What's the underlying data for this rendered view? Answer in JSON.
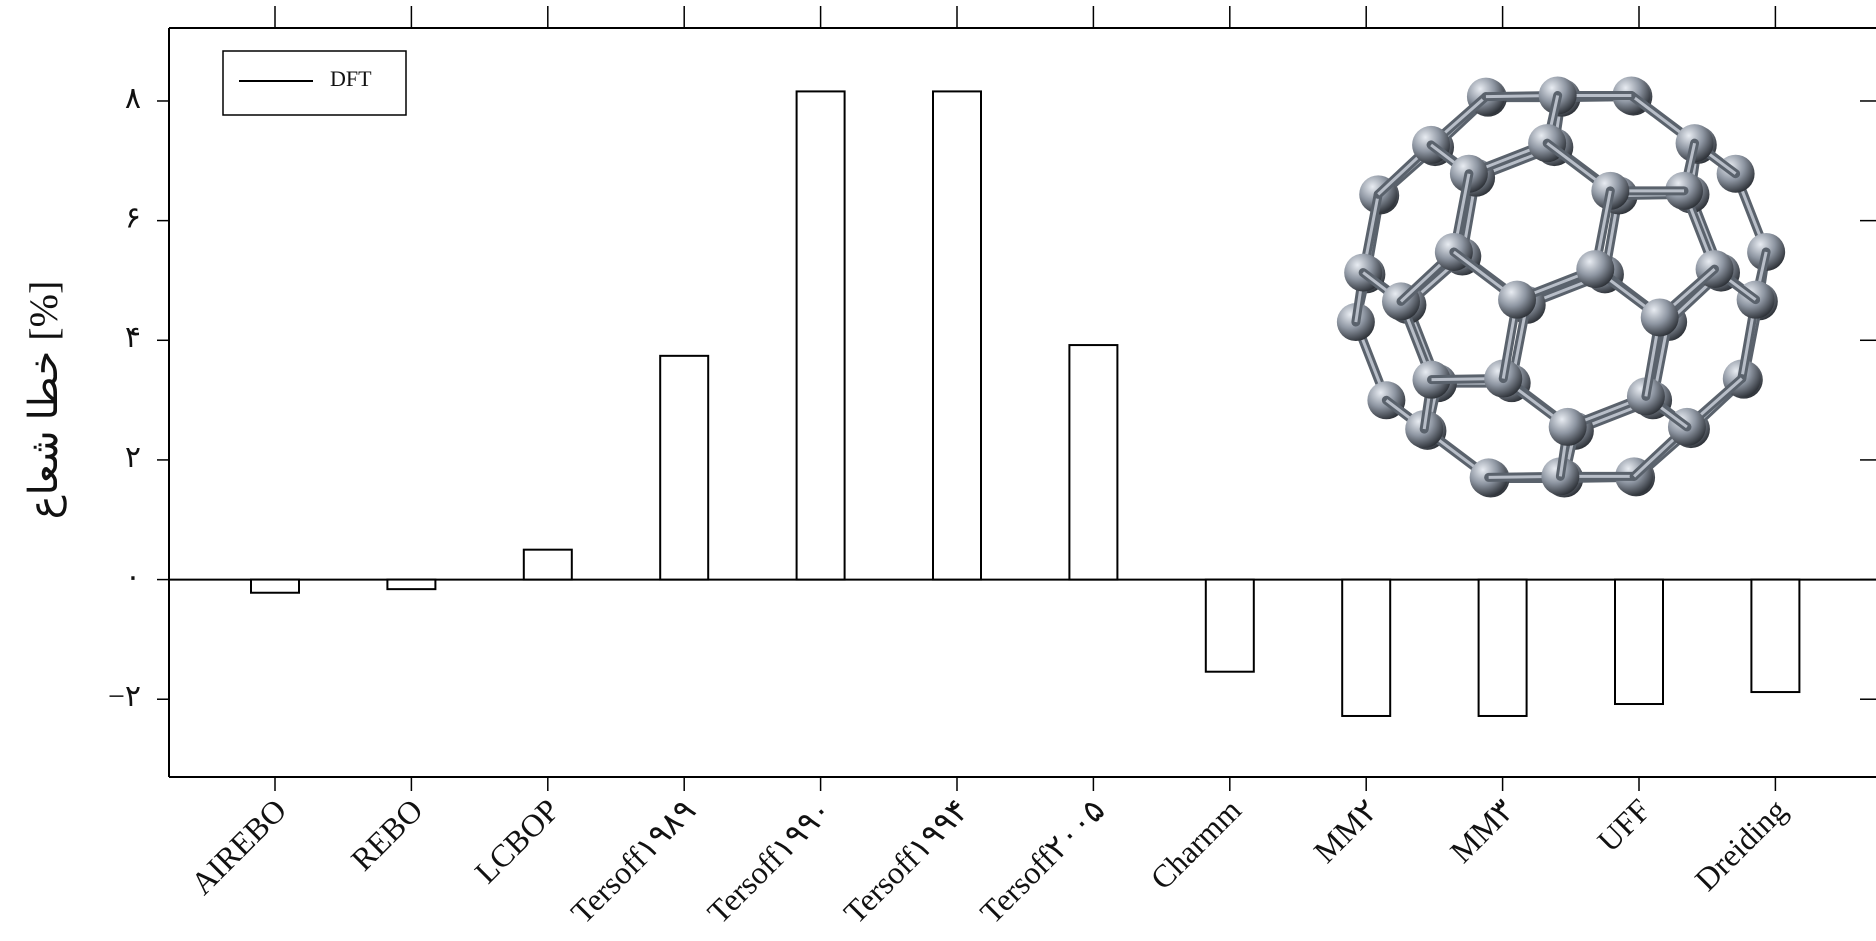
{
  "chart_data": {
    "type": "bar",
    "ylabel": "خطا شعاع [%]",
    "categories": [
      "AIREBO",
      "REBO",
      "LCBOP",
      "Tersoff۱۹۸۹",
      "Tersoff۱۹۹۰",
      "Tersoff۱۹۹۴",
      "Tersoff۲۰۰۵",
      "Charmm",
      "MM۲",
      "MM۳",
      "UFF",
      "Dreiding"
    ],
    "series": [
      {
        "name": "DFT",
        "color": "#ffffff",
        "values": [
          -0.22,
          -0.16,
          0.5,
          3.74,
          8.16,
          8.16,
          3.92,
          -1.54,
          -2.28,
          -2.28,
          -2.08,
          -1.88
        ]
      }
    ],
    "ylim": [
      -3.3,
      9.22
    ],
    "yticks": [
      {
        "value": -2,
        "label": "−۲"
      },
      {
        "value": 0,
        "label": "۰"
      },
      {
        "value": 2,
        "label": "۲"
      },
      {
        "value": 4,
        "label": "۴"
      },
      {
        "value": 6,
        "label": "۶"
      },
      {
        "value": 8,
        "label": "۸"
      }
    ],
    "legend": "upper left"
  }
}
